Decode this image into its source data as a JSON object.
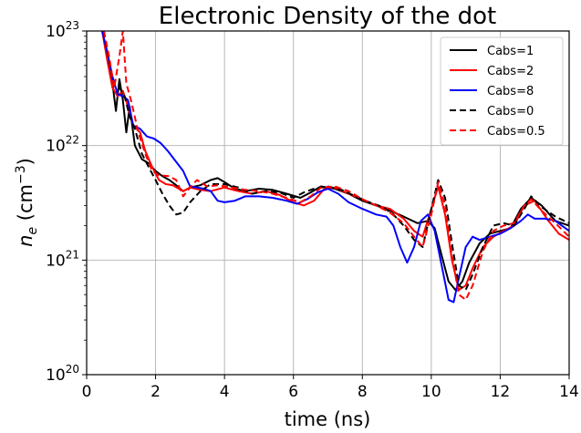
{
  "chart_data": {
    "type": "line",
    "title": "Electronic Density of the dot",
    "xlabel": "time (ns)",
    "ylabel": "n_e (cm^-3)",
    "ylabel_parts": {
      "var": "n",
      "sub": "e",
      "unit_open": " (cm",
      "sup": "−3",
      "unit_close": ")"
    },
    "xlim": [
      0,
      14
    ],
    "ylim": [
      1e+20,
      1e+23
    ],
    "yscale": "log",
    "grid": true,
    "legend_position": "top-right",
    "x_ticks": [
      0,
      2,
      4,
      6,
      8,
      10,
      12,
      14
    ],
    "x_tick_labels": [
      "0",
      "2",
      "4",
      "6",
      "8",
      "10",
      "12",
      "14"
    ],
    "y_ticks": [
      1e+20,
      1e+21,
      1e+22,
      1e+23
    ],
    "y_tick_labels": [
      {
        "base": "10",
        "exp": "20"
      },
      {
        "base": "10",
        "exp": "21"
      },
      {
        "base": "10",
        "exp": "22"
      },
      {
        "base": "10",
        "exp": "23"
      }
    ],
    "series": [
      {
        "name": "Cabs=1",
        "color": "#000000",
        "dash": "solid",
        "points": [
          [
            0.45,
            1e+23
          ],
          [
            0.6,
            6.3e+22
          ],
          [
            0.75,
            3.5e+22
          ],
          [
            0.85,
            2e+22
          ],
          [
            0.95,
            3.8e+22
          ],
          [
            1.05,
            2.5e+22
          ],
          [
            1.15,
            1.3e+22
          ],
          [
            1.25,
            2.2e+22
          ],
          [
            1.4,
            1e+22
          ],
          [
            1.6,
            7.6e+21
          ],
          [
            1.8,
            7e+21
          ],
          [
            2.0,
            6e+21
          ],
          [
            2.2,
            5.4e+21
          ],
          [
            2.4,
            5e+21
          ],
          [
            2.6,
            4.5e+21
          ],
          [
            2.8,
            4e+21
          ],
          [
            3.0,
            4.3e+21
          ],
          [
            3.3,
            4.5e+21
          ],
          [
            3.6,
            5e+21
          ],
          [
            3.8,
            5.2e+21
          ],
          [
            4.0,
            4.8e+21
          ],
          [
            4.3,
            4.2e+21
          ],
          [
            4.6,
            4e+21
          ],
          [
            5.0,
            4.2e+21
          ],
          [
            5.4,
            4.1e+21
          ],
          [
            5.8,
            3.8e+21
          ],
          [
            6.2,
            3.5e+21
          ],
          [
            6.5,
            3.9e+21
          ],
          [
            6.8,
            4.4e+21
          ],
          [
            7.2,
            4.2e+21
          ],
          [
            7.6,
            3.8e+21
          ],
          [
            8.0,
            3.3e+21
          ],
          [
            8.4,
            3e+21
          ],
          [
            8.8,
            2.7e+21
          ],
          [
            9.2,
            2.4e+21
          ],
          [
            9.6,
            2.1e+21
          ],
          [
            9.9,
            2.2e+21
          ],
          [
            10.1,
            1.9e+21
          ],
          [
            10.3,
            1.1e+21
          ],
          [
            10.5,
            6.5e+20
          ],
          [
            10.7,
            5.5e+20
          ],
          [
            10.9,
            6.5e+20
          ],
          [
            11.1,
            9.5e+20
          ],
          [
            11.4,
            1.4e+21
          ],
          [
            11.7,
            1.7e+21
          ],
          [
            12.0,
            1.8e+21
          ],
          [
            12.3,
            1.9e+21
          ],
          [
            12.6,
            2.8e+21
          ],
          [
            12.9,
            3.5e+21
          ],
          [
            13.2,
            3e+21
          ],
          [
            13.6,
            2.2e+21
          ],
          [
            14.0,
            2e+21
          ]
        ]
      },
      {
        "name": "Cabs=2",
        "color": "#ff0000",
        "dash": "solid",
        "points": [
          [
            0.45,
            1e+23
          ],
          [
            0.6,
            5.5e+22
          ],
          [
            0.75,
            3.2e+22
          ],
          [
            0.9,
            2.7e+22
          ],
          [
            1.05,
            3e+22
          ],
          [
            1.2,
            2.2e+22
          ],
          [
            1.35,
            1.5e+22
          ],
          [
            1.55,
            1.3e+22
          ],
          [
            1.7,
            9e+21
          ],
          [
            1.9,
            6.5e+21
          ],
          [
            2.1,
            5e+21
          ],
          [
            2.3,
            4.6e+21
          ],
          [
            2.5,
            4.5e+21
          ],
          [
            2.8,
            4e+21
          ],
          [
            3.0,
            4.3e+21
          ],
          [
            3.3,
            4.1e+21
          ],
          [
            3.6,
            4e+21
          ],
          [
            4.0,
            4.3e+21
          ],
          [
            4.4,
            4e+21
          ],
          [
            4.8,
            3.8e+21
          ],
          [
            5.2,
            4e+21
          ],
          [
            5.6,
            3.7e+21
          ],
          [
            6.0,
            3.2e+21
          ],
          [
            6.3,
            3e+21
          ],
          [
            6.6,
            3.3e+21
          ],
          [
            6.9,
            4.2e+21
          ],
          [
            7.2,
            4.3e+21
          ],
          [
            7.6,
            3.8e+21
          ],
          [
            8.0,
            3.4e+21
          ],
          [
            8.4,
            3e+21
          ],
          [
            8.8,
            2.8e+21
          ],
          [
            9.2,
            2.3e+21
          ],
          [
            9.5,
            1.8e+21
          ],
          [
            9.75,
            1.6e+21
          ],
          [
            9.95,
            2.5e+21
          ],
          [
            10.2,
            4.4e+21
          ],
          [
            10.4,
            2.5e+21
          ],
          [
            10.6,
            1e+21
          ],
          [
            10.8,
            5.5e+20
          ],
          [
            11.0,
            6e+20
          ],
          [
            11.2,
            8.5e+20
          ],
          [
            11.5,
            1.3e+21
          ],
          [
            11.8,
            1.6e+21
          ],
          [
            12.1,
            1.8e+21
          ],
          [
            12.4,
            2e+21
          ],
          [
            12.7,
            3e+21
          ],
          [
            13.0,
            3.3e+21
          ],
          [
            13.4,
            2.2e+21
          ],
          [
            13.7,
            1.7e+21
          ],
          [
            14.0,
            1.5e+21
          ]
        ]
      },
      {
        "name": "Cabs=8",
        "color": "#0000ff",
        "dash": "solid",
        "points": [
          [
            0.45,
            1e+23
          ],
          [
            0.6,
            6.5e+22
          ],
          [
            0.75,
            4e+22
          ],
          [
            0.9,
            2.8e+22
          ],
          [
            1.05,
            2.7e+22
          ],
          [
            1.2,
            2.5e+22
          ],
          [
            1.35,
            1.5e+22
          ],
          [
            1.55,
            1.4e+22
          ],
          [
            1.75,
            1.2e+22
          ],
          [
            1.95,
            1.15e+22
          ],
          [
            2.15,
            1.05e+22
          ],
          [
            2.35,
            9e+21
          ],
          [
            2.6,
            7.2e+21
          ],
          [
            2.8,
            6e+21
          ],
          [
            3.0,
            4.4e+21
          ],
          [
            3.2,
            4.3e+21
          ],
          [
            3.4,
            4.2e+21
          ],
          [
            3.6,
            4e+21
          ],
          [
            3.8,
            3.3e+21
          ],
          [
            4.0,
            3.2e+21
          ],
          [
            4.3,
            3.3e+21
          ],
          [
            4.6,
            3.6e+21
          ],
          [
            5.0,
            3.6e+21
          ],
          [
            5.4,
            3.5e+21
          ],
          [
            5.8,
            3.3e+21
          ],
          [
            6.1,
            3.1e+21
          ],
          [
            6.4,
            3.4e+21
          ],
          [
            6.7,
            3.9e+21
          ],
          [
            7.0,
            4.2e+21
          ],
          [
            7.3,
            3.8e+21
          ],
          [
            7.6,
            3.2e+21
          ],
          [
            8.0,
            2.8e+21
          ],
          [
            8.4,
            2.5e+21
          ],
          [
            8.7,
            2.4e+21
          ],
          [
            8.9,
            2e+21
          ],
          [
            9.1,
            1.3e+21
          ],
          [
            9.3,
            9.5e+20
          ],
          [
            9.5,
            1.3e+21
          ],
          [
            9.7,
            2.2e+21
          ],
          [
            9.9,
            2.5e+21
          ],
          [
            10.1,
            1.8e+21
          ],
          [
            10.3,
            9e+20
          ],
          [
            10.5,
            4.5e+20
          ],
          [
            10.65,
            4.3e+20
          ],
          [
            10.8,
            7e+20
          ],
          [
            11.0,
            1.3e+21
          ],
          [
            11.2,
            1.6e+21
          ],
          [
            11.4,
            1.5e+21
          ],
          [
            11.7,
            1.6e+21
          ],
          [
            12.0,
            1.7e+21
          ],
          [
            12.3,
            1.9e+21
          ],
          [
            12.6,
            2.2e+21
          ],
          [
            12.8,
            2.5e+21
          ],
          [
            13.0,
            2.3e+21
          ],
          [
            13.3,
            2.3e+21
          ],
          [
            13.6,
            2.2e+21
          ],
          [
            14.0,
            1.8e+21
          ]
        ]
      },
      {
        "name": "Cabs=0",
        "color": "#000000",
        "dash": "dashed",
        "points": [
          [
            0.5,
            1e+23
          ],
          [
            0.65,
            5.5e+22
          ],
          [
            0.8,
            3.3e+22
          ],
          [
            0.95,
            3.2e+22
          ],
          [
            1.1,
            2.7e+22
          ],
          [
            1.25,
            1.8e+22
          ],
          [
            1.4,
            1.4e+22
          ],
          [
            1.6,
            8.5e+21
          ],
          [
            1.8,
            6.5e+21
          ],
          [
            2.0,
            5e+21
          ],
          [
            2.2,
            3.8e+21
          ],
          [
            2.4,
            3e+21
          ],
          [
            2.6,
            2.5e+21
          ],
          [
            2.8,
            2.6e+21
          ],
          [
            3.0,
            3.2e+21
          ],
          [
            3.3,
            4e+21
          ],
          [
            3.6,
            4.6e+21
          ],
          [
            4.0,
            4.6e+21
          ],
          [
            4.4,
            4.3e+21
          ],
          [
            4.8,
            3.8e+21
          ],
          [
            5.2,
            4e+21
          ],
          [
            5.6,
            3.9e+21
          ],
          [
            6.0,
            3.5e+21
          ],
          [
            6.3,
            3.9e+21
          ],
          [
            6.6,
            4.2e+21
          ],
          [
            7.0,
            4.4e+21
          ],
          [
            7.4,
            4.1e+21
          ],
          [
            7.8,
            3.6e+21
          ],
          [
            8.2,
            3.2e+21
          ],
          [
            8.6,
            2.9e+21
          ],
          [
            8.9,
            2.5e+21
          ],
          [
            9.2,
            2e+21
          ],
          [
            9.5,
            1.5e+21
          ],
          [
            9.75,
            1.3e+21
          ],
          [
            10.0,
            2.8e+21
          ],
          [
            10.2,
            5e+21
          ],
          [
            10.4,
            3.5e+21
          ],
          [
            10.6,
            1.4e+21
          ],
          [
            10.8,
            6e+20
          ],
          [
            11.0,
            5.5e+20
          ],
          [
            11.2,
            7.5e+20
          ],
          [
            11.5,
            1.3e+21
          ],
          [
            11.8,
            2e+21
          ],
          [
            12.1,
            2.1e+21
          ],
          [
            12.4,
            2e+21
          ],
          [
            12.7,
            2.8e+21
          ],
          [
            12.9,
            3.6e+21
          ],
          [
            13.2,
            2.9e+21
          ],
          [
            13.6,
            2.4e+21
          ],
          [
            14.0,
            2.1e+21
          ]
        ]
      },
      {
        "name": "Cabs=0.5",
        "color": "#ff0000",
        "dash": "dashed",
        "points": [
          [
            0.5,
            1e+23
          ],
          [
            0.65,
            6e+22
          ],
          [
            0.8,
            3.2e+22
          ],
          [
            0.95,
            6e+22
          ],
          [
            1.05,
            1e+23
          ],
          [
            1.15,
            3.5e+22
          ],
          [
            1.3,
            2.4e+22
          ],
          [
            1.5,
            1.3e+22
          ],
          [
            1.7,
            8.5e+21
          ],
          [
            1.9,
            6e+21
          ],
          [
            2.1,
            5.5e+21
          ],
          [
            2.4,
            5.4e+21
          ],
          [
            2.6,
            5e+21
          ],
          [
            2.8,
            3.6e+21
          ],
          [
            3.0,
            4.3e+21
          ],
          [
            3.2,
            5e+21
          ],
          [
            3.5,
            4.4e+21
          ],
          [
            3.8,
            4.5e+21
          ],
          [
            4.2,
            4.3e+21
          ],
          [
            4.6,
            4.1e+21
          ],
          [
            5.0,
            4e+21
          ],
          [
            5.4,
            3.8e+21
          ],
          [
            5.8,
            3.5e+21
          ],
          [
            6.2,
            3.2e+21
          ],
          [
            6.5,
            3.6e+21
          ],
          [
            6.8,
            4.3e+21
          ],
          [
            7.2,
            4.4e+21
          ],
          [
            7.6,
            4e+21
          ],
          [
            8.0,
            3.4e+21
          ],
          [
            8.4,
            3e+21
          ],
          [
            8.8,
            2.6e+21
          ],
          [
            9.2,
            2.1e+21
          ],
          [
            9.5,
            1.6e+21
          ],
          [
            9.75,
            1.3e+21
          ],
          [
            10.0,
            2.5e+21
          ],
          [
            10.2,
            4.8e+21
          ],
          [
            10.4,
            3e+21
          ],
          [
            10.6,
            1.1e+21
          ],
          [
            10.8,
            5e+20
          ],
          [
            11.0,
            4.5e+20
          ],
          [
            11.2,
            6e+20
          ],
          [
            11.5,
            1.2e+21
          ],
          [
            11.8,
            1.8e+21
          ],
          [
            12.1,
            2e+21
          ],
          [
            12.4,
            2.1e+21
          ],
          [
            12.7,
            3e+21
          ],
          [
            12.9,
            3.4e+21
          ],
          [
            13.2,
            2.7e+21
          ],
          [
            13.6,
            2.1e+21
          ],
          [
            14.0,
            1.6e+21
          ]
        ]
      }
    ]
  }
}
